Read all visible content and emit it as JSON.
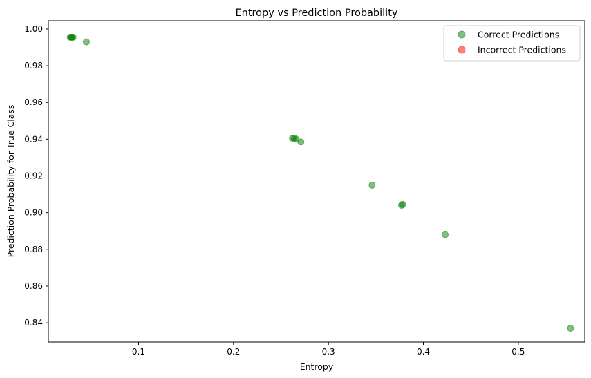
{
  "chart_data": {
    "type": "scatter",
    "title": "Entropy vs Prediction Probability",
    "xlabel": "Entropy",
    "ylabel": "Prediction Probability for True Class",
    "xlim": [
      0.005,
      0.57
    ],
    "ylim": [
      0.8295,
      1.0045
    ],
    "xticks": [
      0.1,
      0.2,
      0.3,
      0.4,
      0.5
    ],
    "xtick_labels": [
      "0.1",
      "0.2",
      "0.3",
      "0.4",
      "0.5"
    ],
    "yticks": [
      0.84,
      0.86,
      0.88,
      0.9,
      0.92,
      0.94,
      0.96,
      0.98,
      1.0
    ],
    "ytick_labels": [
      "0.84",
      "0.86",
      "0.88",
      "0.90",
      "0.92",
      "0.94",
      "0.96",
      "0.98",
      "1.00"
    ],
    "grid": false,
    "legend_position": "top-right",
    "series": [
      {
        "name": "Correct Predictions",
        "color": "#008000",
        "alpha": 0.5,
        "points": [
          {
            "x": 0.028,
            "y": 0.9955
          },
          {
            "x": 0.029,
            "y": 0.9955
          },
          {
            "x": 0.03,
            "y": 0.9955
          },
          {
            "x": 0.031,
            "y": 0.9955
          },
          {
            "x": 0.045,
            "y": 0.993
          },
          {
            "x": 0.262,
            "y": 0.9405
          },
          {
            "x": 0.264,
            "y": 0.9405
          },
          {
            "x": 0.266,
            "y": 0.94
          },
          {
            "x": 0.271,
            "y": 0.9385
          },
          {
            "x": 0.346,
            "y": 0.915
          },
          {
            "x": 0.377,
            "y": 0.904
          },
          {
            "x": 0.378,
            "y": 0.9045
          },
          {
            "x": 0.423,
            "y": 0.888
          },
          {
            "x": 0.555,
            "y": 0.837
          }
        ]
      },
      {
        "name": "Incorrect Predictions",
        "color": "#ff0000",
        "alpha": 0.5,
        "points": []
      }
    ]
  }
}
